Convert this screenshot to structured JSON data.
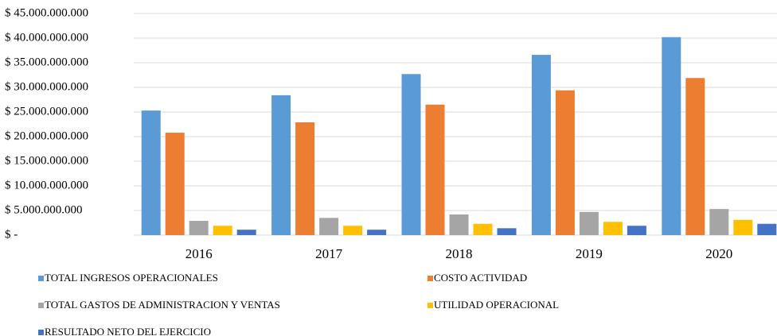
{
  "chart_data": {
    "type": "bar",
    "categories": [
      "2016",
      "2017",
      "2018",
      "2019",
      "2020"
    ],
    "series": [
      {
        "name": "TOTAL INGRESOS OPERACIONALES",
        "color": "#5b9bd5",
        "values": [
          25300000000,
          28400000000,
          32700000000,
          36600000000,
          40200000000
        ]
      },
      {
        "name": "COSTO ACTIVIDAD",
        "color": "#ed7d31",
        "values": [
          20800000000,
          22900000000,
          26500000000,
          29400000000,
          31900000000
        ]
      },
      {
        "name": "TOTAL GASTOS DE ADMINISTRACION Y VENTAS",
        "color": "#a5a5a5",
        "values": [
          2900000000,
          3500000000,
          4200000000,
          4700000000,
          5300000000
        ]
      },
      {
        "name": "UTILIDAD OPERACIONAL",
        "color": "#ffc000",
        "values": [
          1900000000,
          1900000000,
          2300000000,
          2700000000,
          3100000000
        ]
      },
      {
        "name": "RESULTADO NETO DEL EJERCICIO",
        "color": "#4472c4",
        "values": [
          1100000000,
          1100000000,
          1400000000,
          1900000000,
          2300000000
        ]
      }
    ],
    "ylim": [
      0,
      45000000000
    ],
    "yticks": [
      {
        "value": 0,
        "label": "$ -"
      },
      {
        "value": 5000000000,
        "label": "$ 5.000.000.000"
      },
      {
        "value": 10000000000,
        "label": "$ 10.000.000.000"
      },
      {
        "value": 15000000000,
        "label": "$ 15.000.000.000"
      },
      {
        "value": 20000000000,
        "label": "$ 20.000.000.000"
      },
      {
        "value": 25000000000,
        "label": "$ 25.000.000.000"
      },
      {
        "value": 30000000000,
        "label": "$ 30.000.000.000"
      },
      {
        "value": 35000000000,
        "label": "$ 35.000.000.000"
      },
      {
        "value": 40000000000,
        "label": "$ 40.000.000.000"
      },
      {
        "value": 45000000000,
        "label": "$ 45.000.000.000"
      }
    ],
    "grid": true,
    "legend": "bottom"
  }
}
